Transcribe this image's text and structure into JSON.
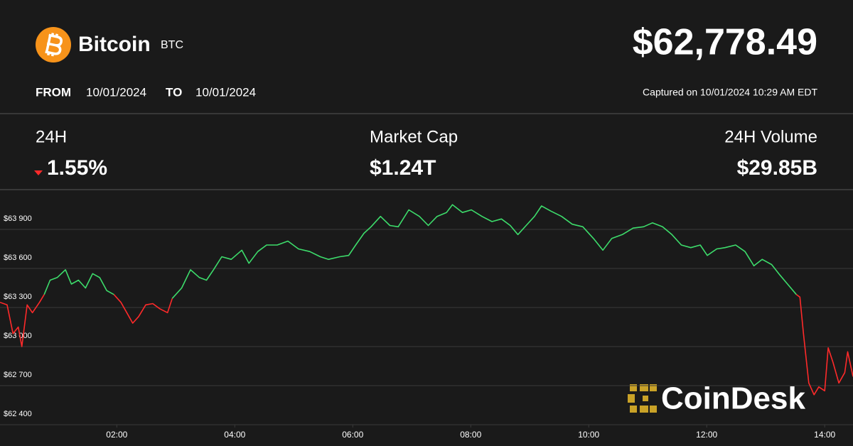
{
  "header": {
    "name": "Bitcoin",
    "symbol": "BTC",
    "price": "$62,778.49",
    "from_label": "FROM",
    "from": "10/01/2024",
    "to_label": "TO",
    "to": "10/01/2024",
    "captured": "Captured on 10/01/2024 10:29 AM EDT"
  },
  "stats": [
    {
      "label": "24H",
      "value": "1.55%"
    },
    {
      "label": "Market Cap",
      "value": "$1.24T"
    },
    {
      "label": "24H Volume",
      "value": "$29.85B"
    }
  ],
  "watermark": "CoinDesk",
  "chart_data": {
    "type": "line",
    "x": [
      0.02,
      0.14,
      0.24,
      0.33,
      0.39,
      0.48,
      0.57,
      0.69,
      0.77,
      0.87,
      0.99,
      1.13,
      1.23,
      1.35,
      1.47,
      1.59,
      1.71,
      1.83,
      1.95,
      2.07,
      2.17,
      2.27,
      2.37,
      2.49,
      2.61,
      2.73,
      2.86,
      2.94,
      3.1,
      3.25,
      3.4,
      3.52,
      3.64,
      3.78,
      3.94,
      4.12,
      4.24,
      4.39,
      4.54,
      4.72,
      4.9,
      5.08,
      5.27,
      5.45,
      5.59,
      5.78,
      5.93,
      6.05,
      6.19,
      6.31,
      6.47,
      6.63,
      6.77,
      6.95,
      7.13,
      7.28,
      7.43,
      7.59,
      7.69,
      7.86,
      8.01,
      8.19,
      8.36,
      8.52,
      8.67,
      8.8,
      8.94,
      9.08,
      9.2,
      9.36,
      9.54,
      9.72,
      9.9,
      10.08,
      10.24,
      10.39,
      10.57,
      10.75,
      10.93,
      11.08,
      11.25,
      11.41,
      11.57,
      11.73,
      11.89,
      12.01,
      12.17,
      12.31,
      12.49,
      12.65,
      12.8,
      12.94,
      13.1,
      13.24,
      13.37,
      13.52,
      13.58,
      13.64,
      13.73,
      13.82,
      13.9,
      14.0,
      14.06,
      14.14,
      14.24,
      14.34,
      14.39,
      14.48
    ],
    "series": [
      {
        "color": "#ff2a2a",
        "values": [
          63340,
          63320,
          63100,
          63150,
          63000,
          63320,
          63260,
          63340,
          63400,
          null,
          null,
          null,
          null,
          null,
          null,
          null,
          null,
          null,
          63400,
          63340,
          63260,
          63180,
          63230,
          63320,
          63330,
          63290,
          63260,
          63370,
          null,
          null,
          null,
          null,
          null,
          null,
          null,
          null,
          null,
          null,
          null,
          null,
          null,
          null,
          null,
          null,
          null,
          null,
          null,
          null,
          null,
          null,
          null,
          null,
          null,
          null,
          null,
          null,
          null,
          null,
          null,
          null,
          null,
          null,
          null,
          null,
          null,
          null,
          null,
          null,
          null,
          null,
          null,
          null,
          null,
          null,
          null,
          null,
          null,
          null,
          null,
          null,
          null,
          null,
          null,
          null,
          null,
          null,
          null,
          null,
          null,
          null,
          null,
          null,
          null,
          null,
          null,
          63400,
          63380,
          63100,
          62720,
          62630,
          62690,
          62660,
          62990,
          62880,
          62720,
          62800,
          62960,
          62770
        ]
      },
      {
        "color": "#3ddc6b",
        "values": [
          null,
          null,
          null,
          null,
          null,
          null,
          null,
          null,
          63400,
          63510,
          63530,
          63590,
          63480,
          63510,
          63450,
          63560,
          63530,
          63430,
          63400,
          null,
          null,
          null,
          null,
          null,
          null,
          null,
          null,
          63370,
          63450,
          63590,
          63530,
          63510,
          63590,
          63690,
          63670,
          63740,
          63640,
          63730,
          63780,
          63780,
          63810,
          63750,
          63730,
          63690,
          63670,
          63690,
          63700,
          63780,
          63870,
          63920,
          64000,
          63930,
          63920,
          64050,
          64000,
          63930,
          64000,
          64030,
          64090,
          64030,
          64050,
          64000,
          63960,
          63980,
          63930,
          63860,
          63930,
          64000,
          64080,
          64040,
          64000,
          63940,
          63920,
          63830,
          63740,
          63830,
          63860,
          63910,
          63920,
          63950,
          63920,
          63860,
          63780,
          63760,
          63780,
          63700,
          63750,
          63760,
          63780,
          63730,
          63620,
          63670,
          63630,
          63550,
          63480,
          63400,
          null,
          null,
          null,
          null,
          null,
          null,
          null,
          null,
          null,
          null,
          null,
          null
        ]
      }
    ],
    "xlim": [
      0.02,
      14.48
    ],
    "xticks": [
      {
        "value": 2,
        "label": "02:00"
      },
      {
        "value": 4,
        "label": "04:00"
      },
      {
        "value": 6,
        "label": "06:00"
      },
      {
        "value": 8,
        "label": "08:00"
      },
      {
        "value": 10,
        "label": "10:00"
      },
      {
        "value": 12,
        "label": "12:00"
      },
      {
        "value": 14,
        "label": "14:00"
      }
    ],
    "ylim": [
      62400,
      64200
    ],
    "yticks": [
      {
        "value": 62400,
        "label": "$62 400"
      },
      {
        "value": 62700,
        "label": "$62 700"
      },
      {
        "value": 63000,
        "label": "$63 000"
      },
      {
        "value": 63300,
        "label": "$63 300"
      },
      {
        "value": 63600,
        "label": "$63 600"
      },
      {
        "value": 63900,
        "label": "$63 900"
      }
    ],
    "grid": true
  }
}
